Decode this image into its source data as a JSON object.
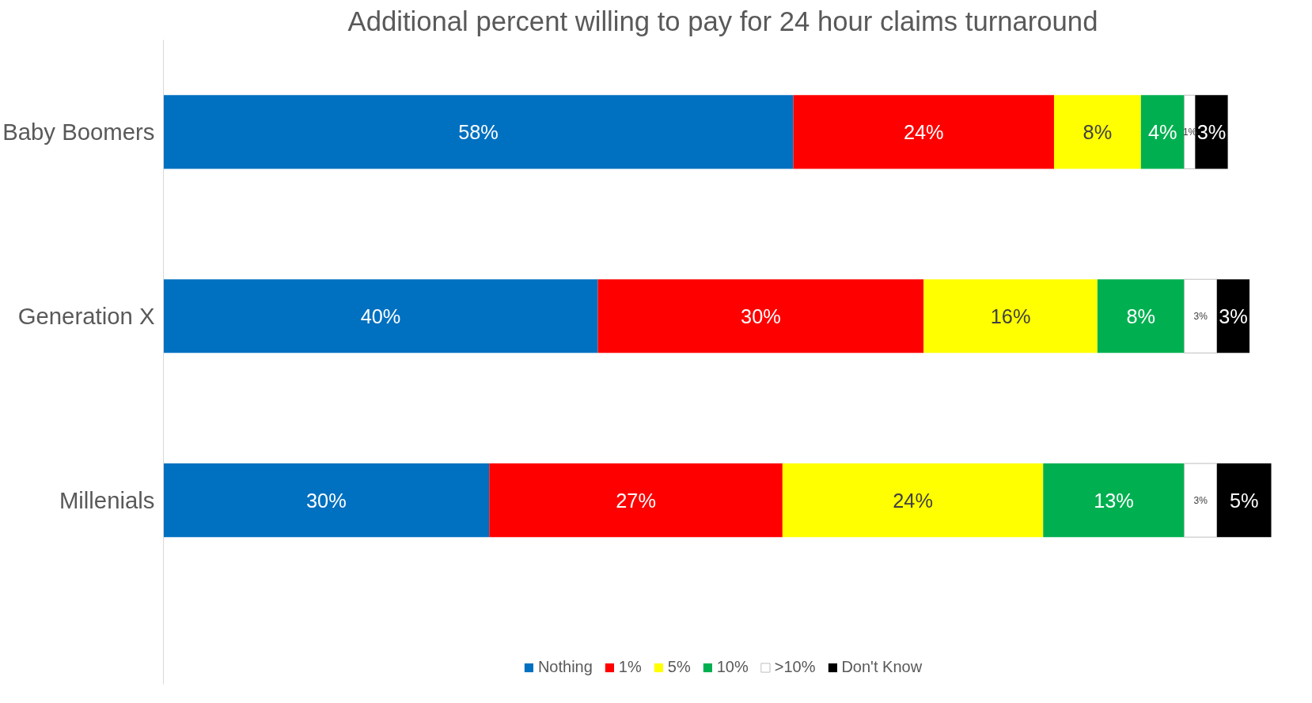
{
  "chart_data": {
    "type": "bar",
    "orientation": "horizontal",
    "stacked": true,
    "title": "Additional percent willing to pay for 24 hour claims turnaround",
    "categories": [
      "Baby Boomers",
      "Generation X",
      "Millenials"
    ],
    "series": [
      {
        "name": "Nothing",
        "color": "#0070c0",
        "values": [
          58,
          40,
          30
        ],
        "value_labels": [
          "58%",
          "40%",
          "30%"
        ]
      },
      {
        "name": "1%",
        "color": "#ff0000",
        "values": [
          24,
          30,
          27
        ],
        "value_labels": [
          "24%",
          "30%",
          "27%"
        ]
      },
      {
        "name": "5%",
        "color": "#ffff00",
        "values": [
          8,
          16,
          24
        ],
        "value_labels": [
          "8%",
          "16%",
          "24%"
        ]
      },
      {
        "name": "10%",
        "color": "#00b050",
        "values": [
          4,
          8,
          13
        ],
        "value_labels": [
          "4%",
          "8%",
          "13%"
        ]
      },
      {
        "name": ">10%",
        "color": "#ffffff",
        "values": [
          1,
          3,
          3
        ],
        "value_labels": [
          "1%",
          "3%",
          "3%"
        ]
      },
      {
        "name": "Don't Know",
        "color": "#000000",
        "values": [
          3,
          3,
          5
        ],
        "value_labels": [
          "3%",
          "3%",
          "5%"
        ]
      }
    ],
    "legend": "bottom",
    "grid": false
  }
}
